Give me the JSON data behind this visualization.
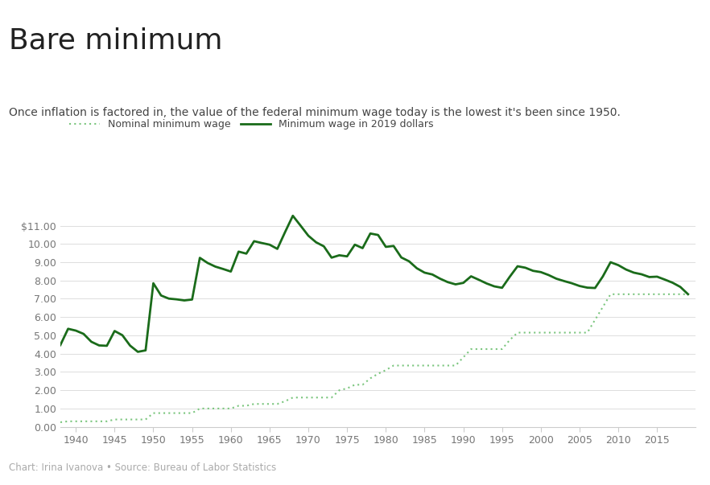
{
  "title": "Bare minimum",
  "subtitle": "Once inflation is factored in, the value of the federal minimum wage today is the lowest it's been since 1950.",
  "legend_nominal": "Nominal minimum wage",
  "legend_real": "Minimum wage in 2019 dollars",
  "footer": "Chart: Irina Ivanova • Source: Bureau of Labor Statistics",
  "accent_bar_color": "#1a1a1a",
  "nominal_color": "#7bc67e",
  "real_color": "#1a6b1a",
  "background_color": "#ffffff",
  "ylim": [
    0,
    12.2
  ],
  "yticks": [
    0.0,
    1.0,
    2.0,
    3.0,
    4.0,
    5.0,
    6.0,
    7.0,
    8.0,
    9.0,
    10.0,
    11.0
  ],
  "ytick_labels": [
    "0.00",
    "1.00",
    "2.00",
    "3.00",
    "4.00",
    "5.00",
    "6.00",
    "7.00",
    "8.00",
    "9.00",
    "10.00",
    "$11.00"
  ],
  "xlim": [
    1938,
    2020
  ],
  "xticks": [
    1940,
    1945,
    1950,
    1955,
    1960,
    1965,
    1970,
    1975,
    1980,
    1985,
    1990,
    1995,
    2000,
    2005,
    2010,
    2015
  ],
  "nominal_years": [
    1938,
    1939,
    1940,
    1941,
    1942,
    1943,
    1944,
    1945,
    1946,
    1947,
    1948,
    1949,
    1950,
    1951,
    1952,
    1953,
    1954,
    1955,
    1956,
    1957,
    1958,
    1959,
    1960,
    1961,
    1962,
    1963,
    1964,
    1965,
    1966,
    1967,
    1968,
    1969,
    1970,
    1971,
    1972,
    1973,
    1974,
    1975,
    1976,
    1977,
    1978,
    1979,
    1980,
    1981,
    1982,
    1983,
    1984,
    1985,
    1986,
    1987,
    1988,
    1989,
    1990,
    1991,
    1992,
    1993,
    1994,
    1995,
    1996,
    1997,
    1998,
    1999,
    2000,
    2001,
    2002,
    2003,
    2004,
    2005,
    2006,
    2007,
    2008,
    2009,
    2010,
    2011,
    2012,
    2013,
    2014,
    2015,
    2016,
    2017,
    2018,
    2019
  ],
  "nominal_values": [
    0.25,
    0.3,
    0.3,
    0.3,
    0.3,
    0.3,
    0.3,
    0.4,
    0.4,
    0.4,
    0.4,
    0.4,
    0.75,
    0.75,
    0.75,
    0.75,
    0.75,
    0.75,
    1.0,
    1.0,
    1.0,
    1.0,
    1.0,
    1.15,
    1.15,
    1.25,
    1.25,
    1.25,
    1.25,
    1.4,
    1.6,
    1.6,
    1.6,
    1.6,
    1.6,
    1.6,
    2.0,
    2.1,
    2.3,
    2.3,
    2.65,
    2.9,
    3.1,
    3.35,
    3.35,
    3.35,
    3.35,
    3.35,
    3.35,
    3.35,
    3.35,
    3.35,
    3.8,
    4.25,
    4.25,
    4.25,
    4.25,
    4.25,
    4.75,
    5.15,
    5.15,
    5.15,
    5.15,
    5.15,
    5.15,
    5.15,
    5.15,
    5.15,
    5.15,
    5.85,
    6.55,
    7.25,
    7.25,
    7.25,
    7.25,
    7.25,
    7.25,
    7.25,
    7.25,
    7.25,
    7.25,
    7.25
  ],
  "real_years": [
    1938,
    1939,
    1940,
    1941,
    1942,
    1943,
    1944,
    1945,
    1946,
    1947,
    1948,
    1949,
    1950,
    1951,
    1952,
    1953,
    1954,
    1955,
    1956,
    1957,
    1958,
    1959,
    1960,
    1961,
    1962,
    1963,
    1964,
    1965,
    1966,
    1967,
    1968,
    1969,
    1970,
    1971,
    1972,
    1973,
    1974,
    1975,
    1976,
    1977,
    1978,
    1979,
    1980,
    1981,
    1982,
    1983,
    1984,
    1985,
    1986,
    1987,
    1988,
    1989,
    1990,
    1991,
    1992,
    1993,
    1994,
    1995,
    1996,
    1997,
    1998,
    1999,
    2000,
    2001,
    2002,
    2003,
    2004,
    2005,
    2006,
    2007,
    2008,
    2009,
    2010,
    2011,
    2012,
    2013,
    2014,
    2015,
    2016,
    2017,
    2018,
    2019
  ],
  "real_values": [
    4.47,
    5.36,
    5.26,
    5.08,
    4.65,
    4.45,
    4.43,
    5.24,
    5.01,
    4.44,
    4.1,
    4.18,
    7.85,
    7.18,
    7.01,
    6.97,
    6.91,
    6.96,
    9.24,
    8.96,
    8.76,
    8.63,
    8.49,
    9.58,
    9.47,
    10.15,
    10.05,
    9.96,
    9.73,
    10.65,
    11.54,
    11.0,
    10.45,
    10.09,
    9.87,
    9.25,
    9.38,
    9.32,
    9.96,
    9.77,
    10.57,
    10.49,
    9.84,
    9.89,
    9.26,
    9.05,
    8.67,
    8.43,
    8.33,
    8.1,
    7.91,
    7.79,
    7.87,
    8.23,
    8.04,
    7.84,
    7.68,
    7.6,
    8.21,
    8.78,
    8.7,
    8.53,
    8.46,
    8.3,
    8.1,
    7.97,
    7.85,
    7.7,
    7.61,
    7.59,
    8.22,
    9.0,
    8.84,
    8.6,
    8.43,
    8.34,
    8.19,
    8.21,
    8.05,
    7.88,
    7.65,
    7.25
  ]
}
